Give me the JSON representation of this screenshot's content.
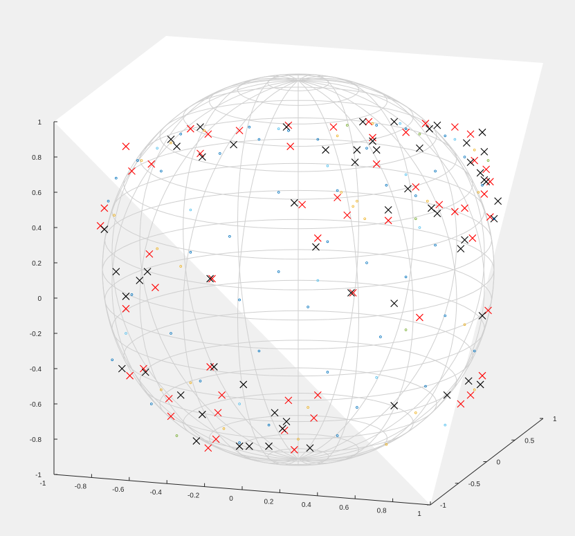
{
  "chart_data": {
    "type": "scatter",
    "title": "",
    "xlabel": "",
    "ylabel": "",
    "zlabel": "",
    "xlim": [
      -1,
      1
    ],
    "ylim": [
      -1,
      1
    ],
    "zlim": [
      -1,
      1
    ],
    "grid": false,
    "x_ticks": [
      "-1",
      "-0.8",
      "-0.6",
      "-0.4",
      "-0.2",
      "0",
      "0.2",
      "0.4",
      "0.6",
      "0.8",
      "1"
    ],
    "y_ticks": [
      "-1",
      "-0.5",
      "0",
      "0.5",
      "1"
    ],
    "z_ticks": [
      "-1",
      "-0.8",
      "-0.6",
      "-0.4",
      "-0.2",
      "0",
      "0.2",
      "0.4",
      "0.6",
      "0.8",
      "1"
    ],
    "sphere_mesh": {
      "color": "#cfcfcf",
      "latitude_lines": 20,
      "longitude_lines": 20
    },
    "colors": {
      "red_marker": "#ff0000",
      "black_marker": "#000000",
      "mesh": "#cfcfcf",
      "axes": "#262626",
      "background": "#ffffff",
      "figure": "#f0f0f0"
    },
    "series": [
      {
        "marker": "x",
        "color": "#ff0000",
        "points_xz": [
          [
            0.36,
            1.0
          ],
          [
            0.65,
            0.99
          ],
          [
            0.8,
            0.97
          ],
          [
            -0.05,
            0.98
          ],
          [
            0.18,
            0.97
          ],
          [
            0.55,
            0.94
          ],
          [
            -0.55,
            0.96
          ],
          [
            -0.3,
            0.95
          ],
          [
            -0.46,
            0.93
          ],
          [
            0.88,
            0.93
          ],
          [
            0.38,
            0.91
          ],
          [
            -0.04,
            0.86
          ],
          [
            -0.88,
            0.86
          ],
          [
            -0.5,
            0.82
          ],
          [
            0.9,
            0.78
          ],
          [
            0.4,
            0.76
          ],
          [
            -0.75,
            0.76
          ],
          [
            -0.85,
            0.72
          ],
          [
            0.96,
            0.73
          ],
          [
            0.98,
            0.66
          ],
          [
            0.6,
            0.63
          ],
          [
            0.95,
            0.59
          ],
          [
            0.2,
            0.57
          ],
          [
            -0.99,
            0.51
          ],
          [
            0.85,
            0.51
          ],
          [
            0.72,
            0.53
          ],
          [
            0.02,
            0.53
          ],
          [
            0.98,
            0.46
          ],
          [
            0.8,
            0.49
          ],
          [
            -1.01,
            0.41
          ],
          [
            0.46,
            0.44
          ],
          [
            0.25,
            0.47
          ],
          [
            0.89,
            0.34
          ],
          [
            0.1,
            0.34
          ],
          [
            -0.76,
            0.25
          ],
          [
            -0.44,
            0.11
          ],
          [
            -0.73,
            0.06
          ],
          [
            0.28,
            0.03
          ],
          [
            0.62,
            -0.11
          ],
          [
            0.97,
            -0.07
          ],
          [
            -0.88,
            -0.06
          ],
          [
            -0.45,
            -0.39
          ],
          [
            -0.79,
            -0.4
          ],
          [
            -0.86,
            -0.44
          ],
          [
            0.94,
            -0.44
          ],
          [
            0.88,
            -0.55
          ],
          [
            -0.05,
            -0.58
          ],
          [
            -0.39,
            -0.55
          ],
          [
            0.1,
            -0.55
          ],
          [
            -0.66,
            -0.57
          ],
          [
            -0.65,
            -0.67
          ],
          [
            -0.41,
            -0.65
          ],
          [
            0.83,
            -0.6
          ],
          [
            0.08,
            -0.68
          ],
          [
            -0.07,
            -0.75
          ],
          [
            -0.42,
            -0.8
          ],
          [
            -0.46,
            -0.85
          ],
          [
            -0.02,
            -0.86
          ]
        ]
      },
      {
        "marker": "x",
        "color": "#000000",
        "points_xz": [
          [
            0.33,
            1.0
          ],
          [
            0.49,
            1.0
          ],
          [
            0.71,
            0.98
          ],
          [
            0.67,
            0.96
          ],
          [
            0.94,
            0.94
          ],
          [
            -0.5,
            0.97
          ],
          [
            -0.06,
            0.97
          ],
          [
            0.38,
            0.89
          ],
          [
            -0.65,
            0.9
          ],
          [
            0.4,
            0.84
          ],
          [
            0.62,
            0.85
          ],
          [
            0.3,
            0.84
          ],
          [
            0.14,
            0.84
          ],
          [
            -0.33,
            0.87
          ],
          [
            0.86,
            0.88
          ],
          [
            0.95,
            0.83
          ],
          [
            0.88,
            0.77
          ],
          [
            -0.62,
            0.86
          ],
          [
            0.95,
            0.67
          ],
          [
            0.93,
            0.71
          ],
          [
            0.29,
            0.77
          ],
          [
            -0.49,
            0.8
          ],
          [
            0.56,
            0.62
          ],
          [
            1.02,
            0.55
          ],
          [
            0.96,
            0.66
          ],
          [
            0.68,
            0.51
          ],
          [
            -0.02,
            0.54
          ],
          [
            0.46,
            0.5
          ],
          [
            0.71,
            0.48
          ],
          [
            1.0,
            0.45
          ],
          [
            0.83,
            0.28
          ],
          [
            -0.99,
            0.39
          ],
          [
            0.85,
            0.33
          ],
          [
            0.09,
            0.29
          ],
          [
            -0.93,
            0.15
          ],
          [
            -0.77,
            0.15
          ],
          [
            -0.81,
            0.1
          ],
          [
            -0.45,
            0.11
          ],
          [
            0.27,
            0.03
          ],
          [
            0.49,
            -0.03
          ],
          [
            0.94,
            -0.1
          ],
          [
            -0.88,
            0.01
          ],
          [
            -0.9,
            -0.4
          ],
          [
            -0.78,
            -0.42
          ],
          [
            -0.43,
            -0.39
          ],
          [
            0.93,
            -0.49
          ],
          [
            0.76,
            -0.55
          ],
          [
            0.87,
            -0.47
          ],
          [
            -0.6,
            -0.55
          ],
          [
            -0.28,
            -0.49
          ],
          [
            0.49,
            -0.61
          ],
          [
            -0.49,
            -0.66
          ],
          [
            -0.12,
            -0.65
          ],
          [
            -0.08,
            -0.74
          ],
          [
            -0.06,
            -0.7
          ],
          [
            -0.52,
            -0.81
          ],
          [
            -0.3,
            -0.84
          ],
          [
            -0.25,
            -0.84
          ],
          [
            -0.15,
            -0.84
          ],
          [
            0.06,
            -0.85
          ]
        ]
      },
      {
        "marker": ".",
        "color": "#0072bd",
        "points_xz": [
          [
            0.4,
            0.98
          ],
          [
            -0.25,
            0.97
          ],
          [
            -0.05,
            0.95
          ],
          [
            0.55,
            0.96
          ],
          [
            -0.6,
            0.93
          ],
          [
            0.75,
            0.92
          ],
          [
            -0.2,
            0.9
          ],
          [
            0.1,
            0.9
          ],
          [
            0.35,
            0.85
          ],
          [
            -0.4,
            0.82
          ],
          [
            -0.82,
            0.78
          ],
          [
            0.85,
            0.8
          ],
          [
            -0.7,
            0.72
          ],
          [
            0.7,
            0.72
          ],
          [
            -0.93,
            0.68
          ],
          [
            0.94,
            0.64
          ],
          [
            0.2,
            0.61
          ],
          [
            0.45,
            0.64
          ],
          [
            -0.1,
            0.6
          ],
          [
            0.6,
            0.58
          ],
          [
            -0.97,
            0.55
          ],
          [
            1.0,
            0.45
          ],
          [
            -0.35,
            0.35
          ],
          [
            0.15,
            0.32
          ],
          [
            0.7,
            0.3
          ],
          [
            -0.55,
            0.26
          ],
          [
            0.35,
            0.2
          ],
          [
            -0.1,
            0.15
          ],
          [
            0.55,
            0.12
          ],
          [
            -0.85,
            0.02
          ],
          [
            -0.3,
            -0.01
          ],
          [
            0.05,
            -0.05
          ],
          [
            0.75,
            -0.1
          ],
          [
            -0.65,
            -0.2
          ],
          [
            0.42,
            -0.22
          ],
          [
            -0.2,
            -0.3
          ],
          [
            0.9,
            -0.3
          ],
          [
            -0.95,
            -0.35
          ],
          [
            0.15,
            -0.42
          ],
          [
            -0.5,
            -0.47
          ],
          [
            0.65,
            -0.5
          ],
          [
            -0.75,
            -0.6
          ],
          [
            0.3,
            -0.62
          ],
          [
            -0.15,
            -0.72
          ],
          [
            0.2,
            -0.78
          ],
          [
            -0.3,
            -0.82
          ]
        ]
      },
      {
        "marker": ".",
        "color": "#edb120",
        "points_xz": [
          [
            0.38,
            0.99
          ],
          [
            -0.48,
            0.95
          ],
          [
            0.2,
            0.92
          ],
          [
            -0.65,
            0.88
          ],
          [
            0.9,
            0.84
          ],
          [
            -0.8,
            0.78
          ],
          [
            0.22,
            0.6
          ],
          [
            0.28,
            0.52
          ],
          [
            0.34,
            0.45
          ],
          [
            0.3,
            0.55
          ],
          [
            0.66,
            0.55
          ],
          [
            0.92,
            0.6
          ],
          [
            -0.94,
            0.47
          ],
          [
            -0.72,
            0.28
          ],
          [
            -0.6,
            0.18
          ],
          [
            0.85,
            -0.15
          ],
          [
            -0.55,
            -0.48
          ],
          [
            -0.7,
            -0.52
          ],
          [
            0.9,
            -0.52
          ],
          [
            0.05,
            -0.62
          ],
          [
            0.6,
            -0.65
          ],
          [
            -0.38,
            -0.74
          ],
          [
            0.0,
            -0.8
          ],
          [
            0.45,
            -0.83
          ]
        ]
      },
      {
        "marker": ".",
        "color": "#4dbeee",
        "points_xz": [
          [
            0.52,
            0.99
          ],
          [
            -0.1,
            0.96
          ],
          [
            0.8,
            0.9
          ],
          [
            -0.72,
            0.85
          ],
          [
            0.15,
            0.75
          ],
          [
            0.55,
            0.7
          ],
          [
            -0.55,
            0.5
          ],
          [
            0.62,
            0.4
          ],
          [
            0.1,
            0.1
          ],
          [
            -0.88,
            -0.2
          ],
          [
            0.4,
            -0.45
          ],
          [
            -0.3,
            -0.6
          ],
          [
            0.75,
            -0.72
          ]
        ]
      },
      {
        "marker": ".",
        "color": "#77ac30",
        "points_xz": [
          [
            0.25,
            0.98
          ],
          [
            0.62,
            0.93
          ],
          [
            0.97,
            0.78
          ],
          [
            0.6,
            0.45
          ],
          [
            0.55,
            -0.18
          ],
          [
            -0.62,
            -0.78
          ]
        ]
      }
    ]
  }
}
